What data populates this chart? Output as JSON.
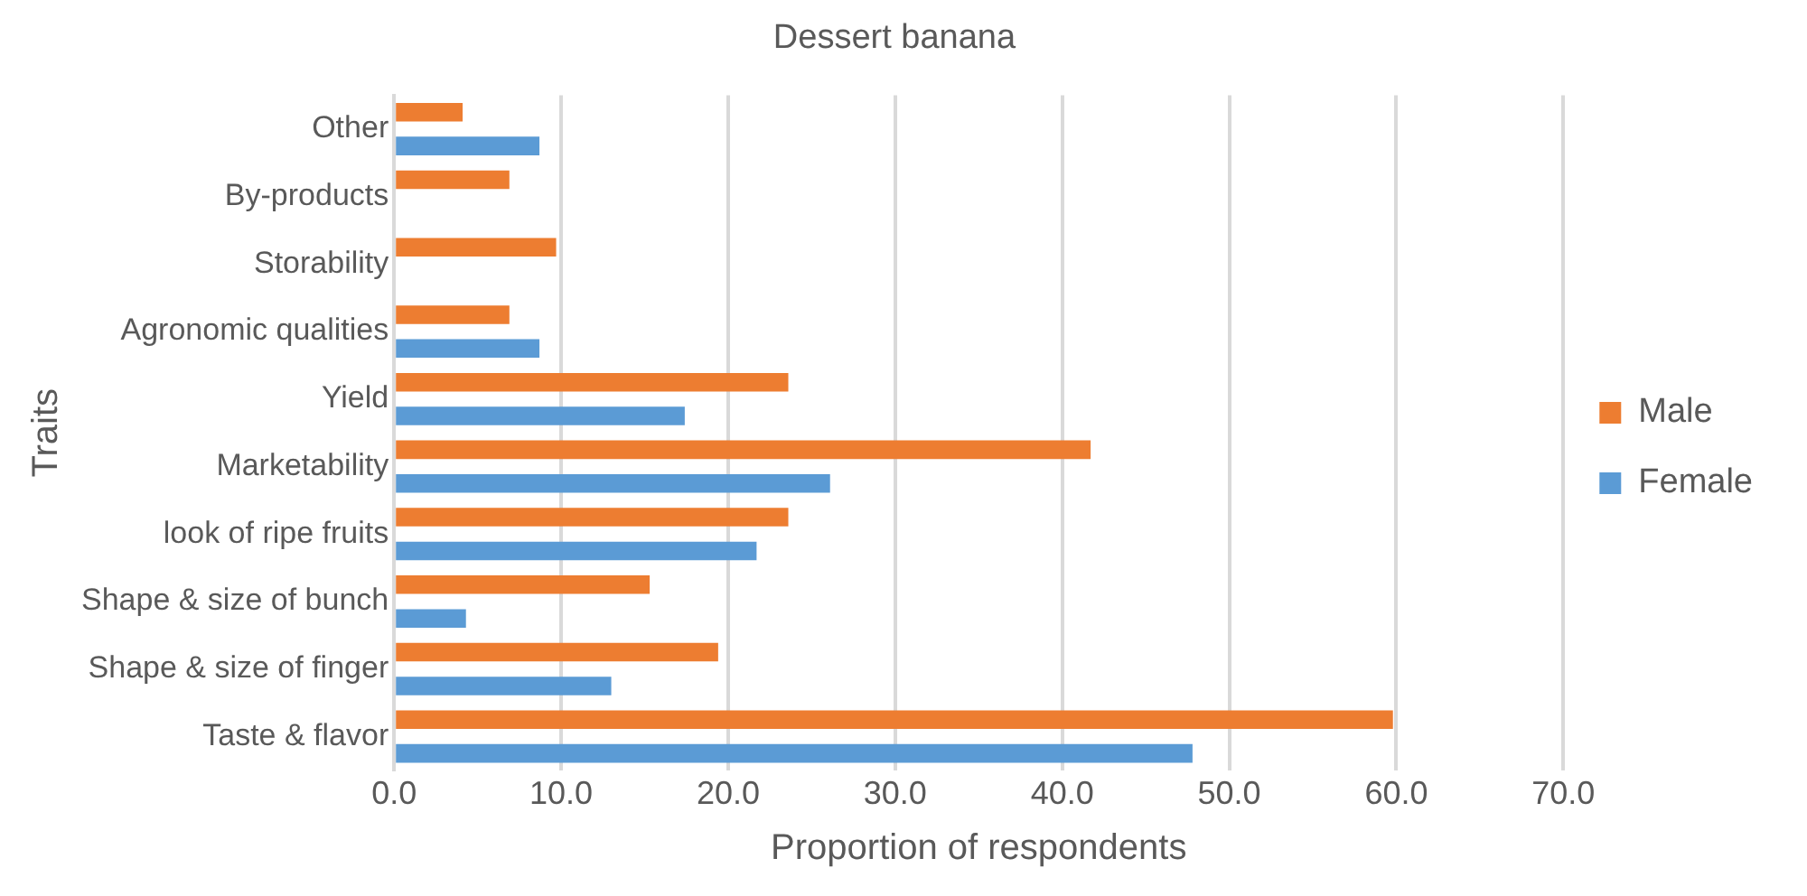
{
  "chart_data": {
    "type": "bar",
    "orientation": "horizontal",
    "title": "Dessert banana",
    "xlabel": "Proportion of respondents",
    "ylabel": "Traits",
    "categories": [
      "Other",
      "By-products",
      "Storability",
      "Agronomic qualities",
      "Yield",
      "Marketability",
      "look of ripe fruits",
      "Shape & size of bunch",
      "Shape & size of finger",
      "Taste & flavor"
    ],
    "series": [
      {
        "name": "Male",
        "color": "#ed7d31",
        "values": [
          4.1,
          6.9,
          9.7,
          6.9,
          23.6,
          41.7,
          23.6,
          15.3,
          19.4,
          59.8
        ]
      },
      {
        "name": "Female",
        "color": "#5b9bd5",
        "values": [
          8.7,
          null,
          null,
          8.7,
          17.4,
          26.1,
          21.7,
          4.3,
          13.0,
          47.8
        ]
      }
    ],
    "xlim": [
      0,
      70
    ],
    "xticks": [
      {
        "value": 0,
        "label": "0.0"
      },
      {
        "value": 10,
        "label": "10.0"
      },
      {
        "value": 20,
        "label": "20.0"
      },
      {
        "value": 30,
        "label": "30.0"
      },
      {
        "value": 40,
        "label": "40.0"
      },
      {
        "value": 50,
        "label": "50.0"
      },
      {
        "value": 60,
        "label": "60.0"
      },
      {
        "value": 70,
        "label": "70.0"
      }
    ],
    "grid": "x",
    "legend": "right"
  }
}
